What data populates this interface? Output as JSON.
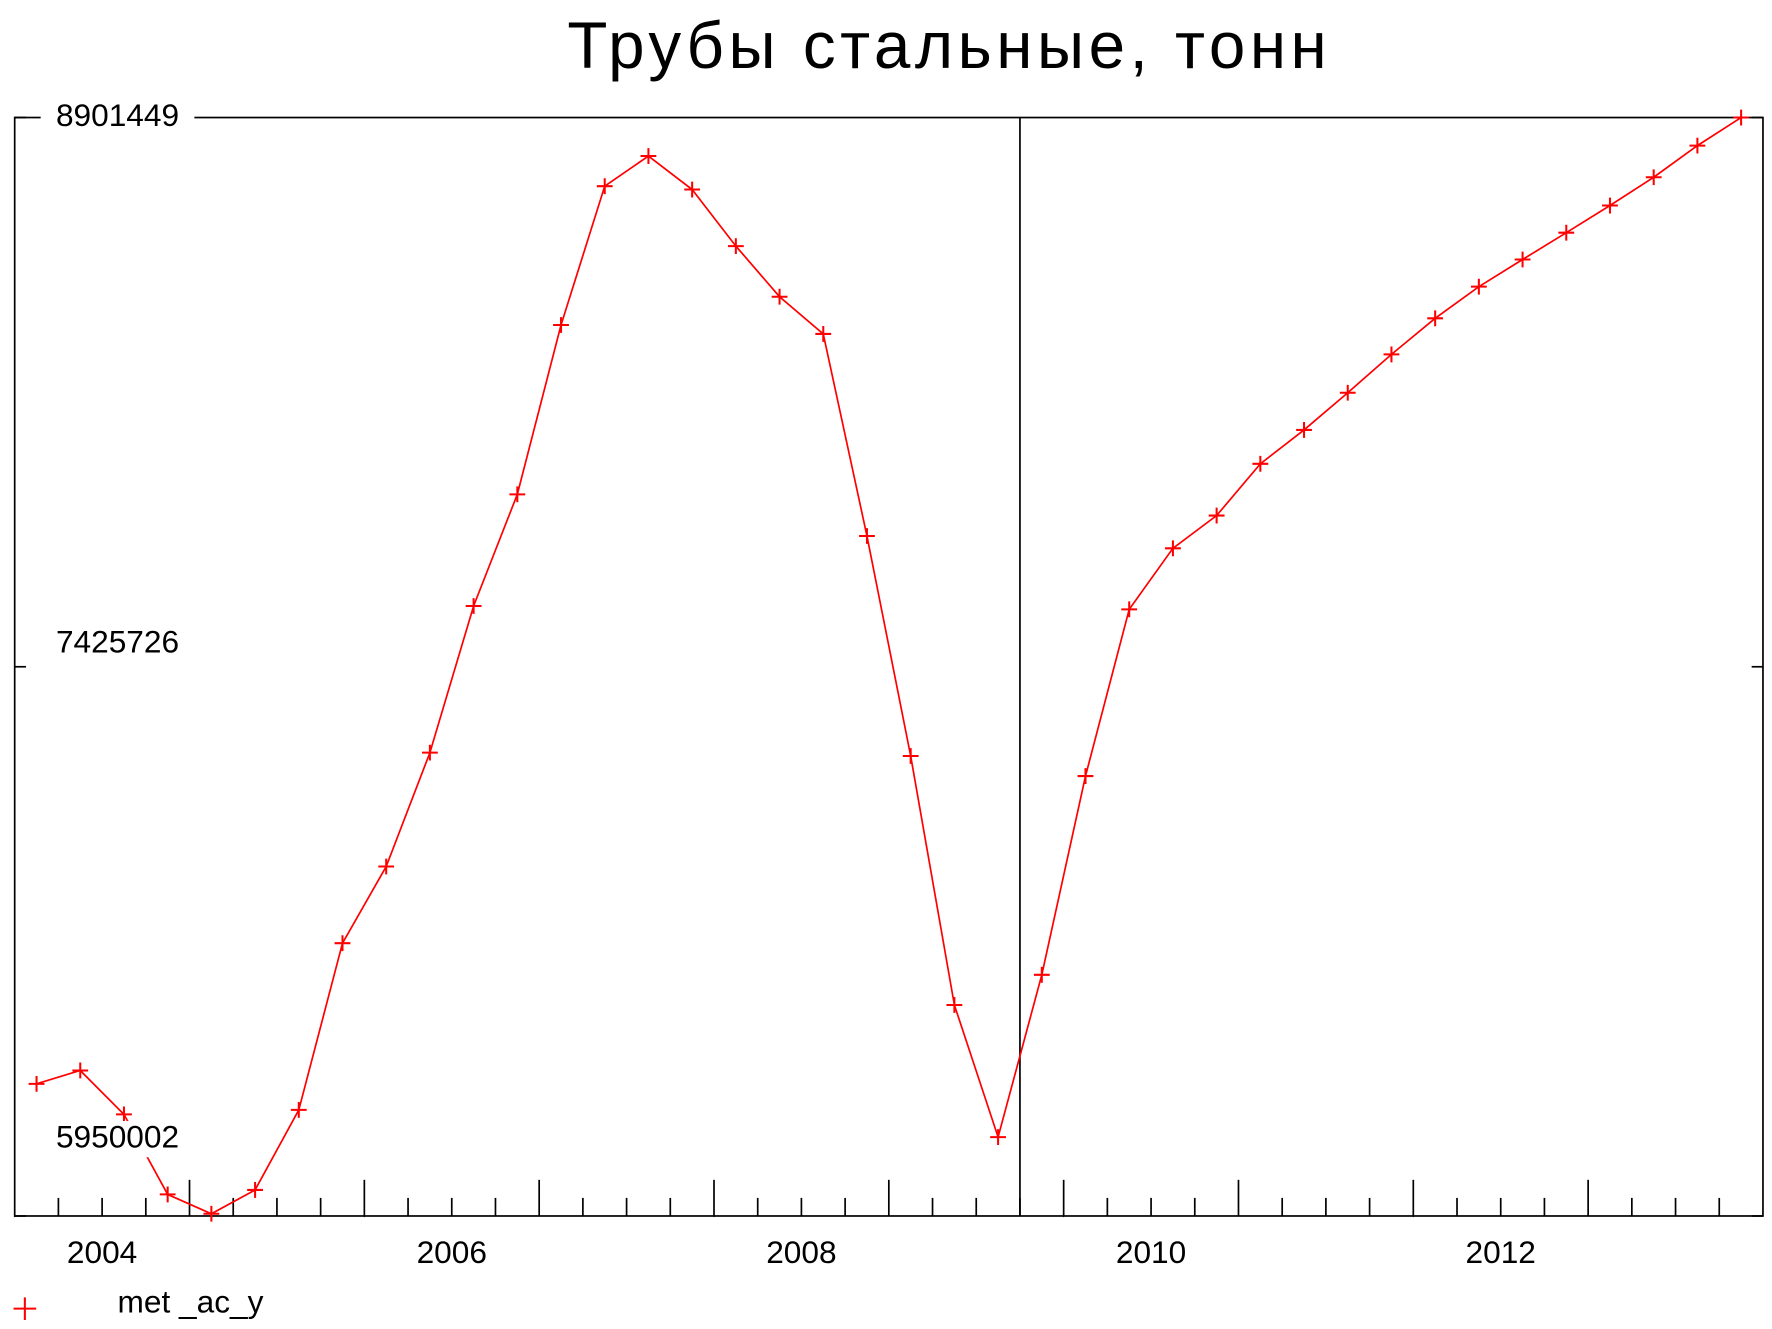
{
  "chart_data": {
    "type": "line",
    "title": "Трубы стальные, тонн",
    "x": [
      2004.125,
      2004.375,
      2004.625,
      2004.875,
      2005.125,
      2005.375,
      2005.625,
      2005.875,
      2006.125,
      2006.375,
      2006.625,
      2006.875,
      2007.125,
      2007.375,
      2007.625,
      2007.875,
      2008.125,
      2008.375,
      2008.625,
      2008.875,
      2009.125,
      2009.375,
      2009.625,
      2009.875,
      2010.125,
      2010.375,
      2010.625,
      2010.875,
      2011.125,
      2011.375,
      2011.625,
      2011.875,
      2012.125,
      2012.375,
      2012.625,
      2012.875,
      2013.125,
      2013.375,
      2013.625,
      2013.875
    ],
    "series": [
      {
        "name": "met _ac_y",
        "color": "#ff0000",
        "values": [
          6305000,
          6341000,
          6223000,
          6008000,
          5956000,
          6020000,
          6235000,
          6683000,
          6889000,
          7195000,
          7589000,
          7889000,
          8344000,
          8717000,
          8798000,
          8708000,
          8556000,
          8420000,
          8320000,
          7777000,
          7186000,
          6517000,
          6162000,
          6598000,
          7132000,
          7580000,
          7744000,
          7832000,
          7971000,
          8062000,
          8162000,
          8265000,
          8362000,
          8447000,
          8520000,
          8592000,
          8665000,
          8741000,
          8826000,
          8901449
        ]
      }
    ],
    "xlim": [
      2004,
      2014
    ],
    "xticks": [
      2004,
      2006,
      2008,
      2010,
      2012
    ],
    "ylim": [
      5950002,
      8901449
    ],
    "yticks": [
      5950002,
      7425726,
      8901449
    ],
    "vline": 2009.75
  }
}
